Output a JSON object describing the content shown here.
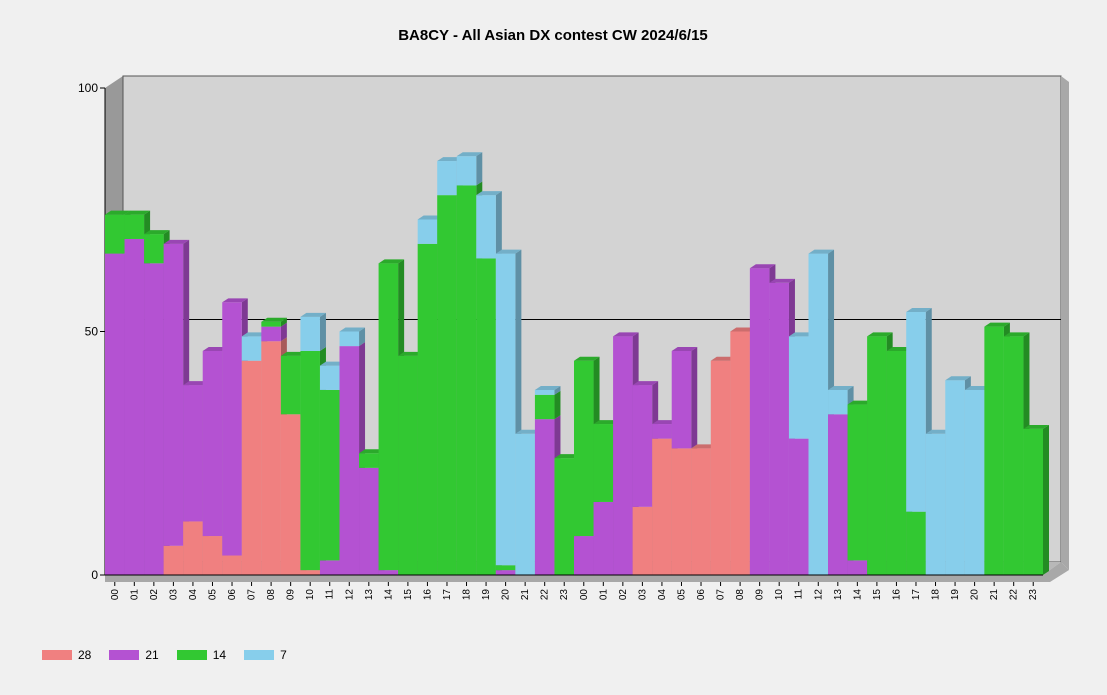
{
  "chart_data": {
    "type": "bar",
    "stacked": true,
    "title": "BA8CY - All Asian DX contest CW 2024/6/15",
    "xlabel": "",
    "ylabel": "",
    "ylim": [
      0,
      100
    ],
    "yticks": [
      "0",
      "50",
      "100"
    ],
    "grid": true,
    "legend": "bottom-left",
    "categories": [
      "00",
      "01",
      "02",
      "03",
      "04",
      "05",
      "06",
      "07",
      "08",
      "09",
      "10",
      "11",
      "12",
      "13",
      "14",
      "15",
      "16",
      "17",
      "18",
      "19",
      "20",
      "21",
      "22",
      "23",
      "00",
      "01",
      "02",
      "03",
      "04",
      "05",
      "06",
      "07",
      "08",
      "09",
      "10",
      "11",
      "12",
      "13",
      "14",
      "15",
      "16",
      "17",
      "18",
      "19",
      "20",
      "21",
      "22",
      "23"
    ],
    "series": [
      {
        "name": "28",
        "color": "#f08080",
        "values": [
          0,
          0,
          0,
          6,
          11,
          8,
          4,
          44,
          48,
          33,
          1,
          0,
          0,
          0,
          0,
          0,
          0,
          0,
          0,
          0,
          0,
          0,
          0,
          0,
          0,
          0,
          0,
          14,
          28,
          26,
          26,
          44,
          50,
          0,
          0,
          0,
          0,
          0,
          0,
          0,
          0,
          0,
          0,
          0,
          0,
          0,
          0,
          0
        ]
      },
      {
        "name": "21",
        "color": "#b452d2",
        "values": [
          66,
          69,
          64,
          62,
          28,
          38,
          52,
          0,
          3,
          0,
          0,
          3,
          47,
          22,
          1,
          0,
          0,
          0,
          0,
          0,
          1,
          0,
          32,
          0,
          8,
          15,
          49,
          25,
          3,
          20,
          0,
          0,
          0,
          63,
          60,
          28,
          0,
          33,
          3,
          0,
          0,
          0,
          0,
          0,
          0,
          0,
          0,
          0
        ]
      },
      {
        "name": "14",
        "color": "#32c832",
        "values": [
          8,
          5,
          6,
          0,
          0,
          0,
          0,
          0,
          1,
          12,
          45,
          35,
          0,
          3,
          63,
          45,
          68,
          78,
          80,
          65,
          1,
          0,
          5,
          24,
          36,
          16,
          0,
          0,
          0,
          0,
          0,
          0,
          0,
          0,
          0,
          0,
          0,
          0,
          32,
          49,
          46,
          13,
          0,
          0,
          0,
          51,
          49,
          30
        ]
      },
      {
        "name": "7",
        "color": "#87ceeb",
        "values": [
          0,
          0,
          0,
          0,
          0,
          0,
          0,
          5,
          0,
          0,
          7,
          5,
          3,
          0,
          0,
          0,
          5,
          7,
          6,
          13,
          64,
          29,
          1,
          0,
          0,
          0,
          0,
          0,
          0,
          0,
          0,
          0,
          0,
          0,
          0,
          21,
          66,
          5,
          0,
          0,
          0,
          41,
          29,
          40,
          38,
          0,
          0,
          0
        ]
      }
    ]
  }
}
